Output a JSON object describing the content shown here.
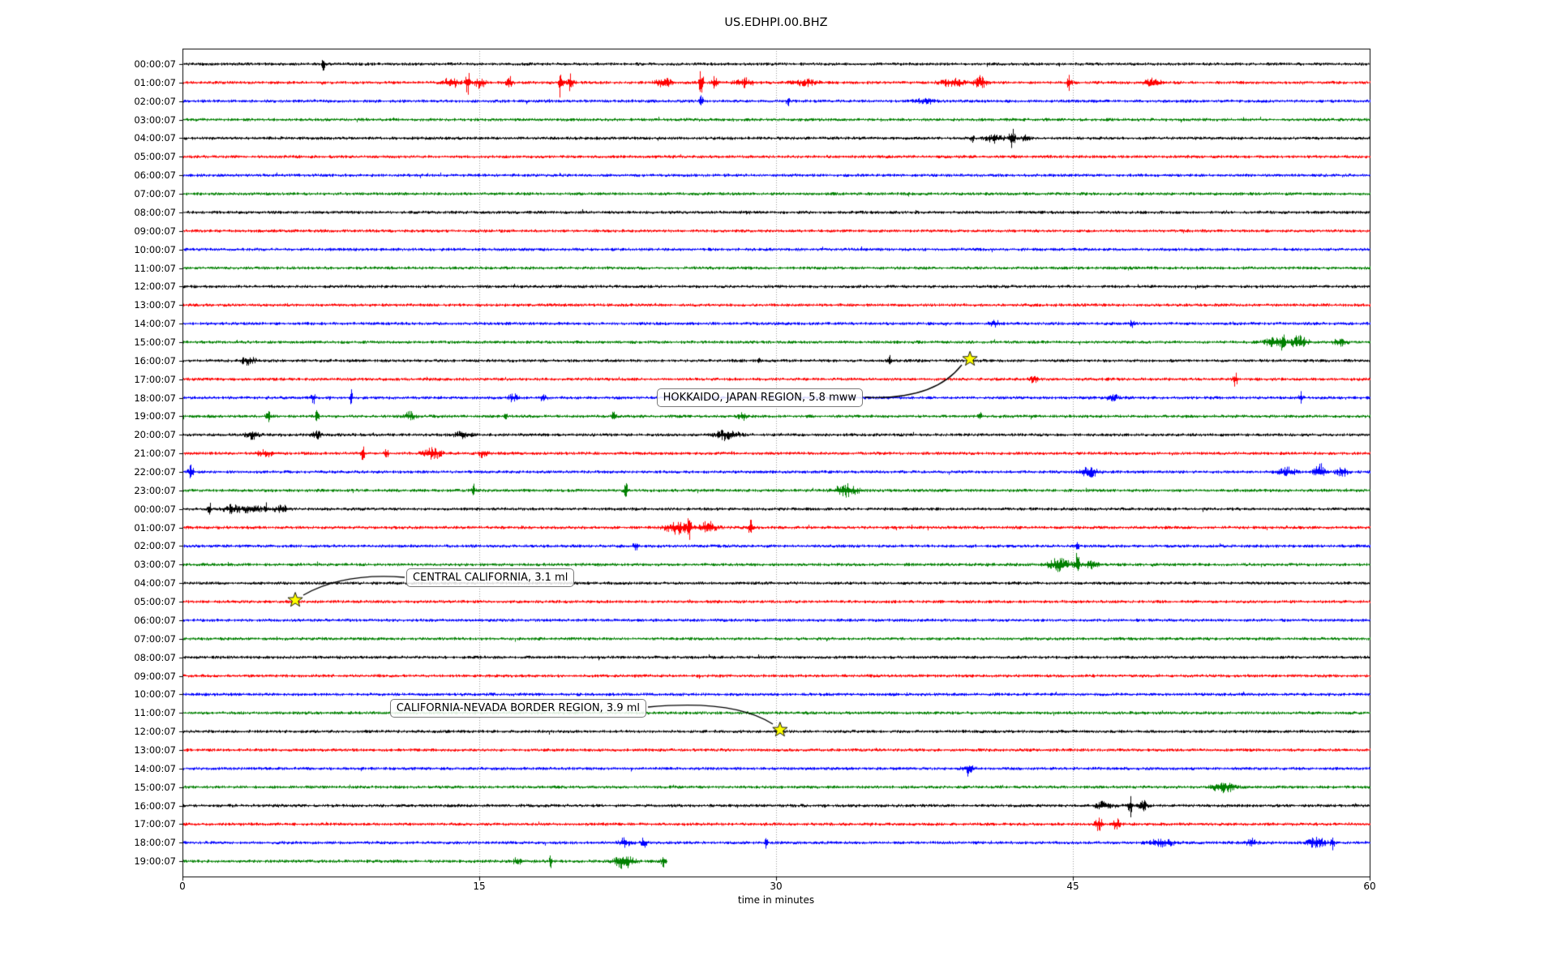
{
  "title": "US.EDHPI.00.BHZ",
  "chart_data": {
    "type": "line",
    "variant": "seismogram-helicorder-dayplot",
    "title": "US.EDHPI.00.BHZ",
    "xlabel": "time in minutes",
    "x_ticks": [
      0,
      15,
      30,
      45,
      60
    ],
    "x_range_minutes": [
      0,
      60
    ],
    "grid_minutes": [
      15,
      30,
      45
    ],
    "grid_style": "dotted-vertical",
    "trace_color_cycle": [
      "#000000",
      "#ff0000",
      "#0000ff",
      "#008000"
    ],
    "event_marker": {
      "shape": "star",
      "fill": "#ffff00",
      "edge": "#000000"
    },
    "rows": [
      {
        "label": "00:00:07",
        "color": "#000000",
        "events": [
          [
            7.1,
            6,
            0.06
          ]
        ]
      },
      {
        "label": "01:00:07",
        "color": "#ff0000",
        "events": [
          [
            13.6,
            6,
            0.25
          ],
          [
            14.4,
            12,
            0.08
          ],
          [
            15.0,
            5,
            0.2
          ],
          [
            16.5,
            6,
            0.12
          ],
          [
            19.1,
            17,
            0.07
          ],
          [
            19.6,
            9,
            0.1
          ],
          [
            24.3,
            5,
            0.25
          ],
          [
            26.2,
            13,
            0.08
          ],
          [
            26.9,
            7,
            0.1
          ],
          [
            28.4,
            4,
            0.3
          ],
          [
            31.5,
            3,
            0.4
          ],
          [
            38.9,
            4,
            0.4
          ],
          [
            40.3,
            6,
            0.2
          ],
          [
            44.8,
            7,
            0.08
          ],
          [
            49.0,
            3,
            0.3
          ]
        ]
      },
      {
        "label": "02:00:07",
        "color": "#0000ff",
        "events": [
          [
            26.2,
            9,
            0.05
          ],
          [
            30.6,
            6,
            0.06
          ],
          [
            37.5,
            3,
            0.3
          ]
        ]
      },
      {
        "label": "03:00:07",
        "color": "#008000",
        "events": []
      },
      {
        "label": "04:00:07",
        "color": "#000000",
        "events": [
          [
            39.9,
            5,
            0.05
          ],
          [
            41.0,
            4,
            0.3
          ],
          [
            41.9,
            13,
            0.1
          ],
          [
            42.6,
            5,
            0.12
          ]
        ]
      },
      {
        "label": "05:00:07",
        "color": "#ff0000",
        "events": []
      },
      {
        "label": "06:00:07",
        "color": "#0000ff",
        "events": []
      },
      {
        "label": "07:00:07",
        "color": "#008000",
        "events": []
      },
      {
        "label": "08:00:07",
        "color": "#000000",
        "events": []
      },
      {
        "label": "09:00:07",
        "color": "#ff0000",
        "events": []
      },
      {
        "label": "10:00:07",
        "color": "#0000ff",
        "events": []
      },
      {
        "label": "11:00:07",
        "color": "#008000",
        "events": []
      },
      {
        "label": "12:00:07",
        "color": "#000000",
        "events": []
      },
      {
        "label": "13:00:07",
        "color": "#ff0000",
        "events": []
      },
      {
        "label": "14:00:07",
        "color": "#0000ff",
        "events": [
          [
            41.0,
            3,
            0.2
          ],
          [
            48.0,
            3,
            0.1
          ]
        ]
      },
      {
        "label": "15:00:07",
        "color": "#008000",
        "events": [
          [
            55.2,
            5,
            0.3
          ],
          [
            55.6,
            14,
            0.06
          ],
          [
            56.4,
            6,
            0.3
          ],
          [
            58.5,
            4,
            0.2
          ]
        ]
      },
      {
        "label": "16:00:07",
        "color": "#000000",
        "events": [
          [
            3.3,
            4,
            0.25
          ],
          [
            29.1,
            5,
            0.05
          ],
          [
            35.7,
            6,
            0.05
          ]
        ]
      },
      {
        "label": "17:00:07",
        "color": "#ff0000",
        "events": [
          [
            43.0,
            3,
            0.15
          ],
          [
            53.2,
            7,
            0.08
          ]
        ]
      },
      {
        "label": "18:00:07",
        "color": "#0000ff",
        "events": [
          [
            6.6,
            6,
            0.07
          ],
          [
            8.5,
            8,
            0.05
          ],
          [
            16.7,
            4,
            0.15
          ],
          [
            18.2,
            4,
            0.12
          ],
          [
            47.0,
            3,
            0.2
          ],
          [
            56.5,
            6,
            0.07
          ]
        ]
      },
      {
        "label": "19:00:07",
        "color": "#008000",
        "events": [
          [
            4.3,
            7,
            0.07
          ],
          [
            6.8,
            7,
            0.06
          ],
          [
            11.5,
            4,
            0.2
          ],
          [
            16.3,
            7,
            0.05
          ],
          [
            21.8,
            9,
            0.06
          ],
          [
            28.3,
            4,
            0.15
          ],
          [
            40.3,
            5,
            0.07
          ]
        ]
      },
      {
        "label": "20:00:07",
        "color": "#000000",
        "events": [
          [
            3.5,
            4,
            0.2
          ],
          [
            6.7,
            4,
            0.2
          ],
          [
            14.1,
            3,
            0.3
          ],
          [
            27.5,
            5,
            0.4
          ]
        ]
      },
      {
        "label": "21:00:07",
        "color": "#ff0000",
        "events": [
          [
            4.2,
            3,
            0.3
          ],
          [
            9.1,
            8,
            0.07
          ],
          [
            10.3,
            5,
            0.07
          ],
          [
            12.6,
            6,
            0.3
          ],
          [
            15.2,
            4,
            0.15
          ]
        ]
      },
      {
        "label": "22:00:07",
        "color": "#0000ff",
        "events": [
          [
            0.4,
            6,
            0.1
          ],
          [
            45.8,
            5,
            0.3
          ],
          [
            55.8,
            4,
            0.3
          ],
          [
            57.5,
            8,
            0.2
          ],
          [
            58.6,
            4,
            0.2
          ]
        ]
      },
      {
        "label": "23:00:07",
        "color": "#008000",
        "events": [
          [
            14.7,
            6,
            0.06
          ],
          [
            22.4,
            8,
            0.06
          ],
          [
            33.5,
            6,
            0.4
          ]
        ]
      },
      {
        "label": "00:00:07",
        "color": "#000000",
        "events": [
          [
            1.35,
            8,
            0.05
          ],
          [
            2.5,
            4,
            0.3
          ],
          [
            3.5,
            4,
            0.3
          ],
          [
            4.2,
            8,
            0.05
          ],
          [
            5.0,
            3,
            0.3
          ]
        ]
      },
      {
        "label": "01:00:07",
        "color": "#ff0000",
        "events": [
          [
            25.0,
            6,
            0.4
          ],
          [
            25.6,
            10,
            0.07
          ],
          [
            26.5,
            6,
            0.3
          ],
          [
            28.7,
            15,
            0.06
          ]
        ]
      },
      {
        "label": "02:00:07",
        "color": "#0000ff",
        "events": [
          [
            22.9,
            4,
            0.1
          ],
          [
            45.2,
            10,
            0.05
          ]
        ]
      },
      {
        "label": "03:00:07",
        "color": "#008000",
        "events": [
          [
            44.3,
            6,
            0.4
          ],
          [
            45.2,
            12,
            0.08
          ],
          [
            45.9,
            5,
            0.2
          ]
        ]
      },
      {
        "label": "04:00:07",
        "color": "#000000",
        "events": []
      },
      {
        "label": "05:00:07",
        "color": "#ff0000",
        "events": []
      },
      {
        "label": "06:00:07",
        "color": "#0000ff",
        "events": []
      },
      {
        "label": "07:00:07",
        "color": "#008000",
        "events": []
      },
      {
        "label": "08:00:07",
        "color": "#000000",
        "events": []
      },
      {
        "label": "09:00:07",
        "color": "#ff0000",
        "events": []
      },
      {
        "label": "10:00:07",
        "color": "#0000ff",
        "events": []
      },
      {
        "label": "11:00:07",
        "color": "#008000",
        "events": []
      },
      {
        "label": "12:00:07",
        "color": "#000000",
        "events": []
      },
      {
        "label": "13:00:07",
        "color": "#ff0000",
        "events": []
      },
      {
        "label": "14:00:07",
        "color": "#0000ff",
        "events": [
          [
            39.7,
            4,
            0.2
          ]
        ]
      },
      {
        "label": "15:00:07",
        "color": "#008000",
        "events": [
          [
            52.6,
            5,
            0.4
          ]
        ]
      },
      {
        "label": "16:00:07",
        "color": "#000000",
        "events": [
          [
            46.6,
            4,
            0.3
          ],
          [
            47.9,
            11,
            0.07
          ],
          [
            48.5,
            6,
            0.15
          ]
        ]
      },
      {
        "label": "17:00:07",
        "color": "#ff0000",
        "events": [
          [
            46.3,
            6,
            0.15
          ],
          [
            47.2,
            6,
            0.12
          ]
        ]
      },
      {
        "label": "18:00:07",
        "color": "#0000ff",
        "events": [
          [
            22.3,
            4,
            0.2
          ],
          [
            23.3,
            5,
            0.1
          ],
          [
            29.5,
            12,
            0.04
          ],
          [
            49.5,
            4,
            0.4
          ],
          [
            54.0,
            4,
            0.2
          ],
          [
            57.3,
            5,
            0.3
          ],
          [
            58.1,
            7,
            0.07
          ]
        ]
      },
      {
        "label": "19:00:07",
        "color": "#008000",
        "end_minute": 24.5,
        "events": [
          [
            16.9,
            4,
            0.12
          ],
          [
            18.6,
            6,
            0.05
          ],
          [
            22.3,
            7,
            0.3
          ],
          [
            24.3,
            7,
            0.07
          ]
        ]
      }
    ],
    "annotated_events": [
      {
        "label": "HOKKAIDO, JAPAN REGION, 5.8 mww",
        "row": 16,
        "minute": 39.8
      },
      {
        "label": "CENTRAL CALIFORNIA, 3.1 ml",
        "row": 29,
        "minute": 5.7
      },
      {
        "label": "CALIFORNIA-NEVADA BORDER REGION, 3.9 ml",
        "row": 36,
        "minute": 30.2
      }
    ]
  }
}
